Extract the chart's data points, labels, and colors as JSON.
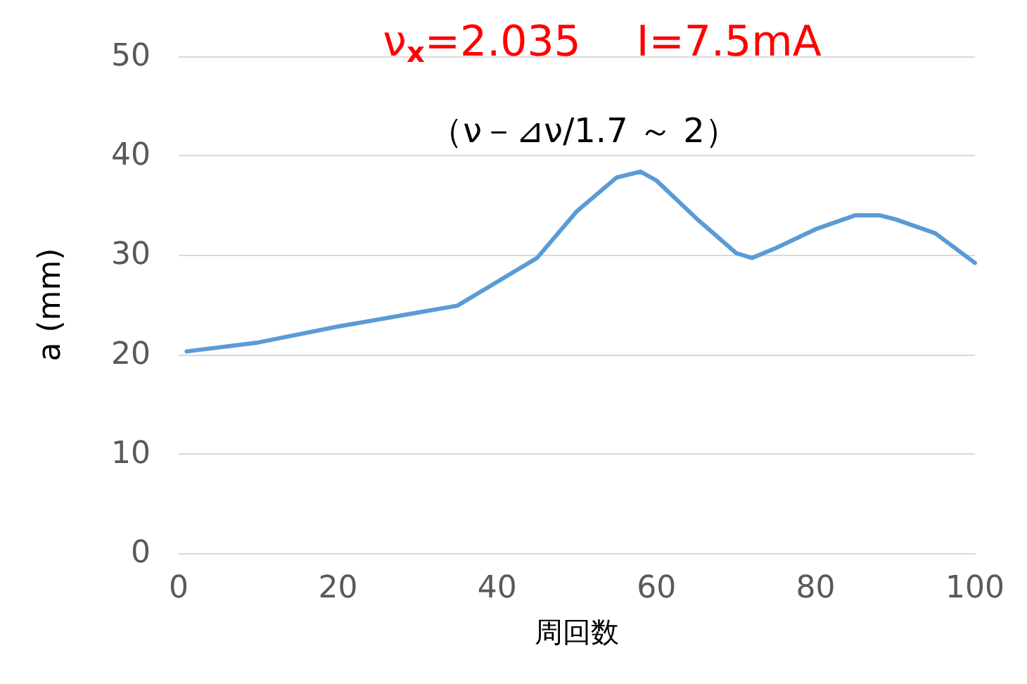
{
  "chart_data": {
    "type": "line",
    "title": "ν$_{x}$=2.035　 I=7.5mA",
    "subtitle": "（ν－⊿ν/1.7 ～ 2）",
    "xlabel": "周回数",
    "ylabel": "a (mm)",
    "x": [
      1,
      10,
      20,
      30,
      35,
      40,
      45,
      50,
      55,
      58,
      60,
      65,
      70,
      72,
      75,
      80,
      85,
      88,
      90,
      95,
      100
    ],
    "series": [
      {
        "color": "#5b9bd5",
        "values": [
          20.3,
          21.2,
          22.8,
          24.2,
          24.9,
          27.3,
          29.7,
          34.4,
          37.8,
          38.4,
          37.5,
          33.7,
          30.2,
          29.7,
          30.7,
          32.6,
          34.0,
          34.0,
          33.6,
          32.2,
          29.2
        ]
      }
    ],
    "xlim": [
      0,
      100
    ],
    "xticks": [
      0,
      20,
      40,
      60,
      80,
      100
    ],
    "ylim": [
      0,
      50
    ],
    "yticks": [
      0,
      10,
      20,
      30,
      40,
      50
    ],
    "grid": "y",
    "marker": "none",
    "line_style": "solid"
  }
}
